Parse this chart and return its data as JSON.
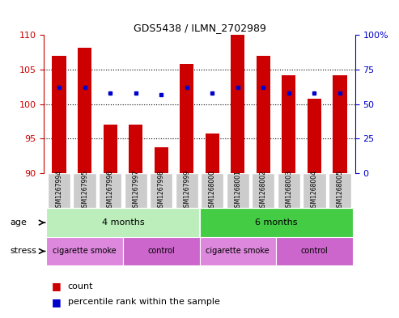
{
  "title": "GDS5438 / ILMN_2702989",
  "samples": [
    "GSM1267994",
    "GSM1267995",
    "GSM1267996",
    "GSM1267997",
    "GSM1267998",
    "GSM1267999",
    "GSM1268000",
    "GSM1268001",
    "GSM1268002",
    "GSM1268003",
    "GSM1268004",
    "GSM1268005"
  ],
  "counts": [
    107.0,
    108.2,
    97.0,
    97.0,
    93.8,
    105.8,
    95.8,
    110.0,
    107.0,
    104.2,
    100.8,
    104.2
  ],
  "percentile_ranks": [
    62,
    62,
    58,
    58,
    57,
    62,
    58,
    62,
    62,
    58,
    58,
    58
  ],
  "ylim_left": [
    90,
    110
  ],
  "ylim_right": [
    0,
    100
  ],
  "yticks_left": [
    90,
    95,
    100,
    105,
    110
  ],
  "yticks_right": [
    0,
    25,
    50,
    75,
    100
  ],
  "bar_color": "#cc0000",
  "dot_color": "#0000cc",
  "background_color": "#ffffff",
  "left_axis_color": "#cc0000",
  "right_axis_color": "#0000cc",
  "age_regions": [
    {
      "xstart": -0.5,
      "xend": 5.5,
      "color": "#bbeebb",
      "label": "4 months"
    },
    {
      "xstart": 5.5,
      "xend": 11.5,
      "color": "#44cc44",
      "label": "6 months"
    }
  ],
  "stress_regions": [
    {
      "xstart": -0.5,
      "xend": 2.5,
      "color": "#dd88dd",
      "label": "cigarette smoke"
    },
    {
      "xstart": 2.5,
      "xend": 5.5,
      "color": "#cc66cc",
      "label": "control"
    },
    {
      "xstart": 5.5,
      "xend": 8.5,
      "color": "#dd88dd",
      "label": "cigarette smoke"
    },
    {
      "xstart": 8.5,
      "xend": 11.5,
      "color": "#cc66cc",
      "label": "control"
    }
  ],
  "sample_label_bg": "#cccccc",
  "grid_linestyle": ":",
  "grid_linewidth": 0.8
}
